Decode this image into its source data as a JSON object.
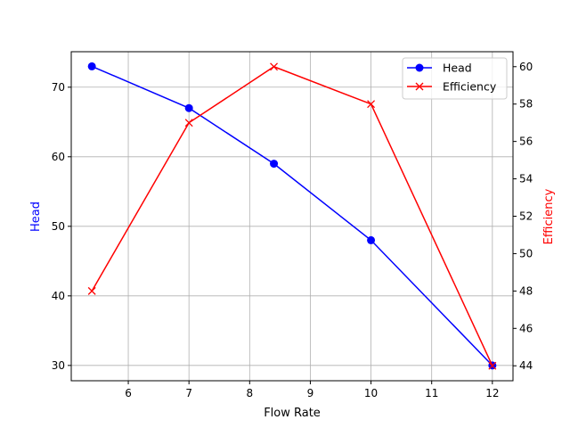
{
  "chart_data": {
    "type": "line",
    "title": "",
    "xlabel": "Flow Rate",
    "ylabel": "Head",
    "y2label": "Efficiency",
    "x": [
      5.4,
      7,
      8.4,
      10,
      12
    ],
    "xlim": [
      5.06,
      12.34
    ],
    "ylim": [
      27.8,
      75.1
    ],
    "y2lim": [
      43.2,
      60.8
    ],
    "xticks": [
      6,
      7,
      8,
      9,
      10,
      11,
      12
    ],
    "yticks": [
      30,
      40,
      50,
      60,
      70
    ],
    "y2ticks": [
      44,
      46,
      48,
      50,
      52,
      54,
      56,
      58,
      60
    ],
    "grid": true,
    "legend_position": "top-right",
    "series": [
      {
        "name": "Head",
        "axis": "left",
        "values": [
          73,
          67,
          59,
          48,
          30
        ],
        "color": "#0000ff",
        "marker": "circle"
      },
      {
        "name": "Efficiency",
        "axis": "right",
        "values": [
          48,
          57,
          60,
          58,
          44
        ],
        "color": "#ff0000",
        "marker": "x"
      }
    ],
    "ylabel_color": "#0000ff",
    "y2label_color": "#ff0000"
  }
}
